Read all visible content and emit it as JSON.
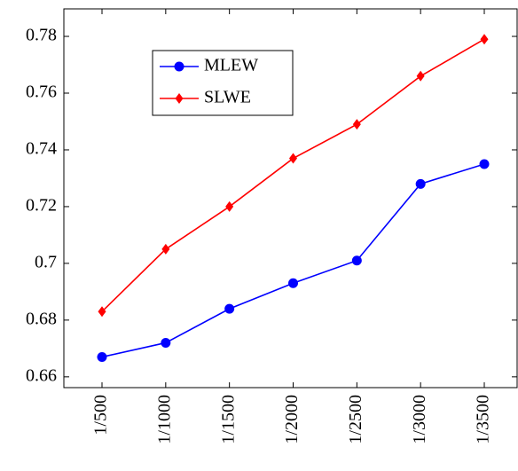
{
  "chart_data": {
    "type": "line",
    "categories": [
      "1/500",
      "1/1000",
      "1/1500",
      "1/2000",
      "1/2500",
      "1/3000",
      "1/3500"
    ],
    "series": [
      {
        "name": "MLEW",
        "color": "#0000ff",
        "marker": "circle",
        "values": [
          0.667,
          0.672,
          0.684,
          0.693,
          0.701,
          0.728,
          0.735
        ]
      },
      {
        "name": "SLWE",
        "color": "#ff0000",
        "marker": "diamond",
        "values": [
          0.683,
          0.705,
          0.72,
          0.737,
          0.749,
          0.766,
          0.779
        ]
      }
    ],
    "ylim": [
      0.6562,
      0.7897
    ],
    "yticks": [
      0.66,
      0.68,
      0.7,
      0.72,
      0.74,
      0.76,
      0.78
    ],
    "legend": "upper left"
  }
}
